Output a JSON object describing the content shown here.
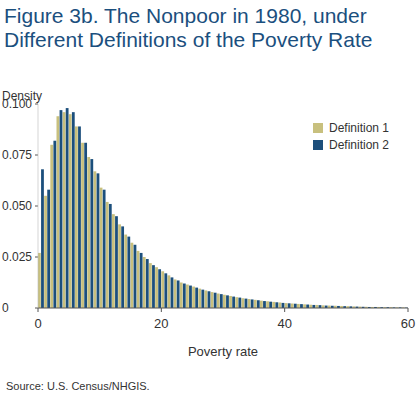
{
  "chart_data": {
    "type": "histogram",
    "title": "Figure 3b. The Nonpoor in 1980, under Different Definitions of the Poverty Rate",
    "x_label": "Poverty rate",
    "y_label": "Density",
    "source": "Source: U.S. Census/NHGIS.",
    "bins": [
      0,
      1,
      2,
      3,
      4,
      5,
      6,
      7,
      8,
      9,
      10,
      11,
      12,
      13,
      14,
      15,
      16,
      17,
      18,
      19,
      20,
      21,
      22,
      23,
      24,
      25,
      26,
      27,
      28,
      29,
      30,
      31,
      32,
      33,
      34,
      35,
      36,
      37,
      38,
      39,
      40,
      41,
      42,
      43,
      44,
      45,
      46,
      47,
      48,
      49,
      50,
      51,
      52,
      53,
      54,
      55,
      56,
      57,
      58,
      59,
      60
    ],
    "series": [
      {
        "name": "Definition 1",
        "color": "#c8c07e",
        "values": [
          0.027,
          0.055,
          0.08,
          0.094,
          0.096,
          0.095,
          0.089,
          0.081,
          0.074,
          0.067,
          0.059,
          0.052,
          0.046,
          0.041,
          0.036,
          0.032,
          0.028,
          0.025,
          0.022,
          0.02,
          0.018,
          0.016,
          0.014,
          0.0125,
          0.0115,
          0.0105,
          0.0095,
          0.0086,
          0.0078,
          0.0071,
          0.0065,
          0.0059,
          0.0053,
          0.0048,
          0.0044,
          0.004,
          0.0036,
          0.0033,
          0.003,
          0.0027,
          0.0024,
          0.0022,
          0.002,
          0.0018,
          0.0016,
          0.0015,
          0.0013,
          0.0012,
          0.0011,
          0.001,
          0.0009,
          0.0008,
          0.0007,
          0.0006,
          0.0005,
          0.0005,
          0.0004,
          0.0004,
          0.0003,
          0.0003
        ]
      },
      {
        "name": "Definition 2",
        "color": "#1c4f7c",
        "values": [
          0.068,
          0.058,
          0.082,
          0.097,
          0.098,
          0.096,
          0.089,
          0.081,
          0.073,
          0.066,
          0.058,
          0.051,
          0.045,
          0.04,
          0.035,
          0.031,
          0.027,
          0.024,
          0.021,
          0.019,
          0.017,
          0.015,
          0.0135,
          0.012,
          0.011,
          0.01,
          0.009,
          0.0082,
          0.0075,
          0.0068,
          0.0062,
          0.0056,
          0.0051,
          0.0046,
          0.0042,
          0.0038,
          0.0034,
          0.0031,
          0.0028,
          0.0025,
          0.0023,
          0.0021,
          0.0019,
          0.0017,
          0.0015,
          0.0014,
          0.0012,
          0.0011,
          0.001,
          0.0009,
          0.0008,
          0.0007,
          0.0006,
          0.0005,
          0.0005,
          0.0004,
          0.0004,
          0.0003,
          0.0003,
          0.0002
        ]
      }
    ],
    "xlim": [
      0,
      60
    ],
    "xticks": [
      0,
      20,
      40,
      60
    ],
    "ylim": [
      0,
      0.1
    ],
    "yticks": [
      0,
      0.025,
      {
        "value": 0.05,
        "label": "0.050"
      },
      0.075,
      {
        "value": 0.1,
        "label": "0.100"
      }
    ],
    "grid": false,
    "legend": "top-right"
  }
}
